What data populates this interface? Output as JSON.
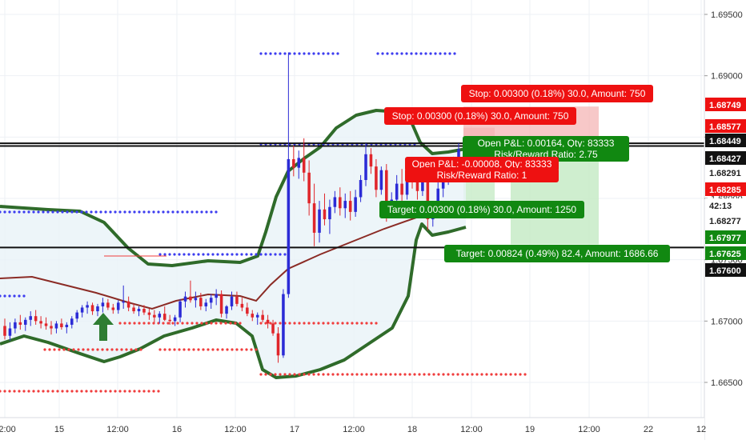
{
  "colors": {
    "up": "#2b2bd6",
    "down": "#e0262b",
    "band": "#2f6b2a",
    "band_fill": "#e8f2f8",
    "midline": "#8b2b25",
    "label_red": "#ee1111",
    "label_green": "#118811",
    "label_black": "#111111",
    "stop_zone": "#f4b6b6",
    "target_zone": "#c7ebc7",
    "arrow": "#2e7d32",
    "dot_blue": "#3c3cf0",
    "dot_red": "#f03c3c"
  },
  "chart_data": {
    "type": "candlestick",
    "x_tick_labels": [
      "12:00",
      "15",
      "12:00",
      "16",
      "12:00",
      "17",
      "12:00",
      "18",
      "12:00",
      "19",
      "12:00",
      "22",
      "12"
    ],
    "price_ticks": [
      "1.69500",
      "1.69000",
      "1.68500",
      "1.68000",
      "1.67500",
      "1.67000",
      "1.66500"
    ],
    "ylim": [
      1.6625,
      1.6975
    ],
    "horizontal_lines": [
      1.68449,
      1.68427,
      1.676
    ],
    "price_labels": [
      {
        "text": "1.68749",
        "color": "red"
      },
      {
        "text": "1.68577",
        "color": "red"
      },
      {
        "text": "1.68449",
        "color": "black"
      },
      {
        "text": "1.68427",
        "color": "black"
      },
      {
        "text": "1.68291",
        "color": "none"
      },
      {
        "text": "1.68285",
        "color": "red"
      },
      {
        "text": "42:13",
        "color": "none"
      },
      {
        "text": "1.68277",
        "color": "none"
      },
      {
        "text": "1.67977",
        "color": "green"
      },
      {
        "text": "1.67625",
        "color": "green"
      },
      {
        "text": "1.67600",
        "color": "black"
      }
    ],
    "annotations": [
      {
        "text": "Stop: 0.00300 (0.18%) 30.0, Amount: 750",
        "color": "red"
      },
      {
        "text": "Stop: 0.00300 (0.18%) 30.0, Amount: 750",
        "color": "red"
      },
      {
        "text": "Open P&L: 0.00164, Qty: 83333",
        "color": "green"
      },
      {
        "text": "Risk/Reward Ratio: 2.75",
        "color": "green"
      },
      {
        "text": "Open P&L: -0.00008, Qty: 83333",
        "color": "red"
      },
      {
        "text": "Risk/Reward Ratio: 1",
        "color": "red"
      },
      {
        "text": "Target: 0.00300 (0.18%) 30.0, Amount: 1250",
        "color": "green"
      },
      {
        "text": "Target: 0.00824 (0.49%) 82.4, Amount: 1686.66",
        "color": "green"
      }
    ],
    "candles": [
      {
        "o": 1.6696,
        "h": 1.6702,
        "l": 1.6685,
        "c": 1.6688
      },
      {
        "o": 1.6688,
        "h": 1.6699,
        "l": 1.6684,
        "c": 1.6694
      },
      {
        "o": 1.6694,
        "h": 1.6702,
        "l": 1.669,
        "c": 1.6699
      },
      {
        "o": 1.6699,
        "h": 1.6705,
        "l": 1.6693,
        "c": 1.6697
      },
      {
        "o": 1.6697,
        "h": 1.6703,
        "l": 1.6692,
        "c": 1.6701
      },
      {
        "o": 1.6701,
        "h": 1.6708,
        "l": 1.6696,
        "c": 1.6704
      },
      {
        "o": 1.6704,
        "h": 1.6709,
        "l": 1.6697,
        "c": 1.67
      },
      {
        "o": 1.67,
        "h": 1.6704,
        "l": 1.6694,
        "c": 1.6698
      },
      {
        "o": 1.6698,
        "h": 1.6703,
        "l": 1.6693,
        "c": 1.6696
      },
      {
        "o": 1.6696,
        "h": 1.67,
        "l": 1.6689,
        "c": 1.6694
      },
      {
        "o": 1.6694,
        "h": 1.67,
        "l": 1.669,
        "c": 1.6698
      },
      {
        "o": 1.6698,
        "h": 1.6702,
        "l": 1.6693,
        "c": 1.6695
      },
      {
        "o": 1.6695,
        "h": 1.6699,
        "l": 1.669,
        "c": 1.6697
      },
      {
        "o": 1.6697,
        "h": 1.6704,
        "l": 1.6694,
        "c": 1.6702
      },
      {
        "o": 1.6702,
        "h": 1.6709,
        "l": 1.6699,
        "c": 1.6707
      },
      {
        "o": 1.6707,
        "h": 1.6713,
        "l": 1.6703,
        "c": 1.6711
      },
      {
        "o": 1.6711,
        "h": 1.6716,
        "l": 1.6706,
        "c": 1.6713
      },
      {
        "o": 1.6713,
        "h": 1.6715,
        "l": 1.6705,
        "c": 1.6708
      },
      {
        "o": 1.6708,
        "h": 1.6714,
        "l": 1.6704,
        "c": 1.6712
      },
      {
        "o": 1.6712,
        "h": 1.6719,
        "l": 1.6707,
        "c": 1.6715
      },
      {
        "o": 1.6715,
        "h": 1.6718,
        "l": 1.6709,
        "c": 1.6711
      },
      {
        "o": 1.6711,
        "h": 1.6714,
        "l": 1.6706,
        "c": 1.6709
      },
      {
        "o": 1.6709,
        "h": 1.6717,
        "l": 1.6706,
        "c": 1.6715
      },
      {
        "o": 1.6715,
        "h": 1.6729,
        "l": 1.671,
        "c": 1.6716
      },
      {
        "o": 1.6716,
        "h": 1.672,
        "l": 1.6708,
        "c": 1.6711
      },
      {
        "o": 1.6711,
        "h": 1.6714,
        "l": 1.6706,
        "c": 1.6708
      },
      {
        "o": 1.6708,
        "h": 1.6712,
        "l": 1.6704,
        "c": 1.671
      },
      {
        "o": 1.671,
        "h": 1.6713,
        "l": 1.6705,
        "c": 1.6707
      },
      {
        "o": 1.6707,
        "h": 1.671,
        "l": 1.6701,
        "c": 1.6705
      },
      {
        "o": 1.6705,
        "h": 1.6709,
        "l": 1.6699,
        "c": 1.6703
      },
      {
        "o": 1.6703,
        "h": 1.6708,
        "l": 1.6698,
        "c": 1.6706
      },
      {
        "o": 1.6706,
        "h": 1.6712,
        "l": 1.67,
        "c": 1.6701
      },
      {
        "o": 1.6701,
        "h": 1.6705,
        "l": 1.6697,
        "c": 1.67
      },
      {
        "o": 1.67,
        "h": 1.6705,
        "l": 1.6696,
        "c": 1.6703
      },
      {
        "o": 1.6703,
        "h": 1.6718,
        "l": 1.6699,
        "c": 1.6716
      },
      {
        "o": 1.6716,
        "h": 1.6724,
        "l": 1.6711,
        "c": 1.672
      },
      {
        "o": 1.672,
        "h": 1.6733,
        "l": 1.6715,
        "c": 1.6717
      },
      {
        "o": 1.6717,
        "h": 1.6724,
        "l": 1.6711,
        "c": 1.6719
      },
      {
        "o": 1.6719,
        "h": 1.6723,
        "l": 1.6709,
        "c": 1.6712
      },
      {
        "o": 1.6712,
        "h": 1.6718,
        "l": 1.6708,
        "c": 1.6715
      },
      {
        "o": 1.6715,
        "h": 1.6722,
        "l": 1.671,
        "c": 1.6719
      },
      {
        "o": 1.6719,
        "h": 1.6726,
        "l": 1.6713,
        "c": 1.6722
      },
      {
        "o": 1.6722,
        "h": 1.6725,
        "l": 1.6703,
        "c": 1.6706
      },
      {
        "o": 1.6706,
        "h": 1.6713,
        "l": 1.6702,
        "c": 1.6712
      },
      {
        "o": 1.6712,
        "h": 1.6724,
        "l": 1.6709,
        "c": 1.672
      },
      {
        "o": 1.672,
        "h": 1.6724,
        "l": 1.6712,
        "c": 1.6714
      },
      {
        "o": 1.6714,
        "h": 1.6719,
        "l": 1.6708,
        "c": 1.6711
      },
      {
        "o": 1.6711,
        "h": 1.6715,
        "l": 1.6704,
        "c": 1.6706
      },
      {
        "o": 1.6706,
        "h": 1.6709,
        "l": 1.67,
        "c": 1.6703
      },
      {
        "o": 1.6703,
        "h": 1.6707,
        "l": 1.6697,
        "c": 1.6705
      },
      {
        "o": 1.6705,
        "h": 1.6709,
        "l": 1.6699,
        "c": 1.6701
      },
      {
        "o": 1.6701,
        "h": 1.6705,
        "l": 1.6694,
        "c": 1.6698
      },
      {
        "o": 1.6698,
        "h": 1.6701,
        "l": 1.6688,
        "c": 1.669
      },
      {
        "o": 1.669,
        "h": 1.6695,
        "l": 1.6666,
        "c": 1.6672
      },
      {
        "o": 1.6672,
        "h": 1.6726,
        "l": 1.667,
        "c": 1.6722
      },
      {
        "o": 1.6722,
        "h": 1.6919,
        "l": 1.6719,
        "c": 1.6832
      },
      {
        "o": 1.6832,
        "h": 1.6843,
        "l": 1.6818,
        "c": 1.6825
      },
      {
        "o": 1.6825,
        "h": 1.6839,
        "l": 1.6816,
        "c": 1.6833
      },
      {
        "o": 1.6833,
        "h": 1.6849,
        "l": 1.6814,
        "c": 1.6821
      },
      {
        "o": 1.6821,
        "h": 1.6831,
        "l": 1.6786,
        "c": 1.6796
      },
      {
        "o": 1.6796,
        "h": 1.6812,
        "l": 1.6761,
        "c": 1.6772
      },
      {
        "o": 1.6772,
        "h": 1.6798,
        "l": 1.6764,
        "c": 1.6791
      },
      {
        "o": 1.6791,
        "h": 1.6804,
        "l": 1.6778,
        "c": 1.6783
      },
      {
        "o": 1.6783,
        "h": 1.6799,
        "l": 1.6771,
        "c": 1.6793
      },
      {
        "o": 1.6793,
        "h": 1.6806,
        "l": 1.6788,
        "c": 1.6801
      },
      {
        "o": 1.6801,
        "h": 1.6809,
        "l": 1.6786,
        "c": 1.6792
      },
      {
        "o": 1.6792,
        "h": 1.6804,
        "l": 1.6784,
        "c": 1.6798
      },
      {
        "o": 1.6798,
        "h": 1.6806,
        "l": 1.6782,
        "c": 1.6789
      },
      {
        "o": 1.6789,
        "h": 1.6807,
        "l": 1.6785,
        "c": 1.6801
      },
      {
        "o": 1.6801,
        "h": 1.6819,
        "l": 1.6797,
        "c": 1.6815
      },
      {
        "o": 1.6815,
        "h": 1.6845,
        "l": 1.681,
        "c": 1.6836
      },
      {
        "o": 1.6836,
        "h": 1.6841,
        "l": 1.682,
        "c": 1.6826
      },
      {
        "o": 1.6826,
        "h": 1.6832,
        "l": 1.6801,
        "c": 1.6807
      },
      {
        "o": 1.6807,
        "h": 1.6826,
        "l": 1.6803,
        "c": 1.6823
      },
      {
        "o": 1.6823,
        "h": 1.6828,
        "l": 1.6781,
        "c": 1.6788
      },
      {
        "o": 1.6788,
        "h": 1.6805,
        "l": 1.6784,
        "c": 1.6799
      },
      {
        "o": 1.6799,
        "h": 1.6819,
        "l": 1.6793,
        "c": 1.6812
      },
      {
        "o": 1.6812,
        "h": 1.6824,
        "l": 1.6797,
        "c": 1.6803
      },
      {
        "o": 1.6803,
        "h": 1.6826,
        "l": 1.6799,
        "c": 1.6817
      },
      {
        "o": 1.6817,
        "h": 1.683,
        "l": 1.6808,
        "c": 1.6814
      },
      {
        "o": 1.6814,
        "h": 1.6821,
        "l": 1.6799,
        "c": 1.6806
      },
      {
        "o": 1.6806,
        "h": 1.6825,
        "l": 1.6802,
        "c": 1.682
      },
      {
        "o": 1.682,
        "h": 1.6826,
        "l": 1.6774,
        "c": 1.6783
      },
      {
        "o": 1.6783,
        "h": 1.6797,
        "l": 1.6777,
        "c": 1.6793
      },
      {
        "o": 1.6793,
        "h": 1.6813,
        "l": 1.6788,
        "c": 1.6808
      },
      {
        "o": 1.6808,
        "h": 1.6822,
        "l": 1.6801,
        "c": 1.6817
      },
      {
        "o": 1.6817,
        "h": 1.6828,
        "l": 1.6811,
        "c": 1.6821
      },
      {
        "o": 1.6821,
        "h": 1.6834,
        "l": 1.6817,
        "c": 1.6829
      },
      {
        "o": 1.6829,
        "h": 1.6845,
        "l": 1.6825,
        "c": 1.684
      }
    ]
  }
}
